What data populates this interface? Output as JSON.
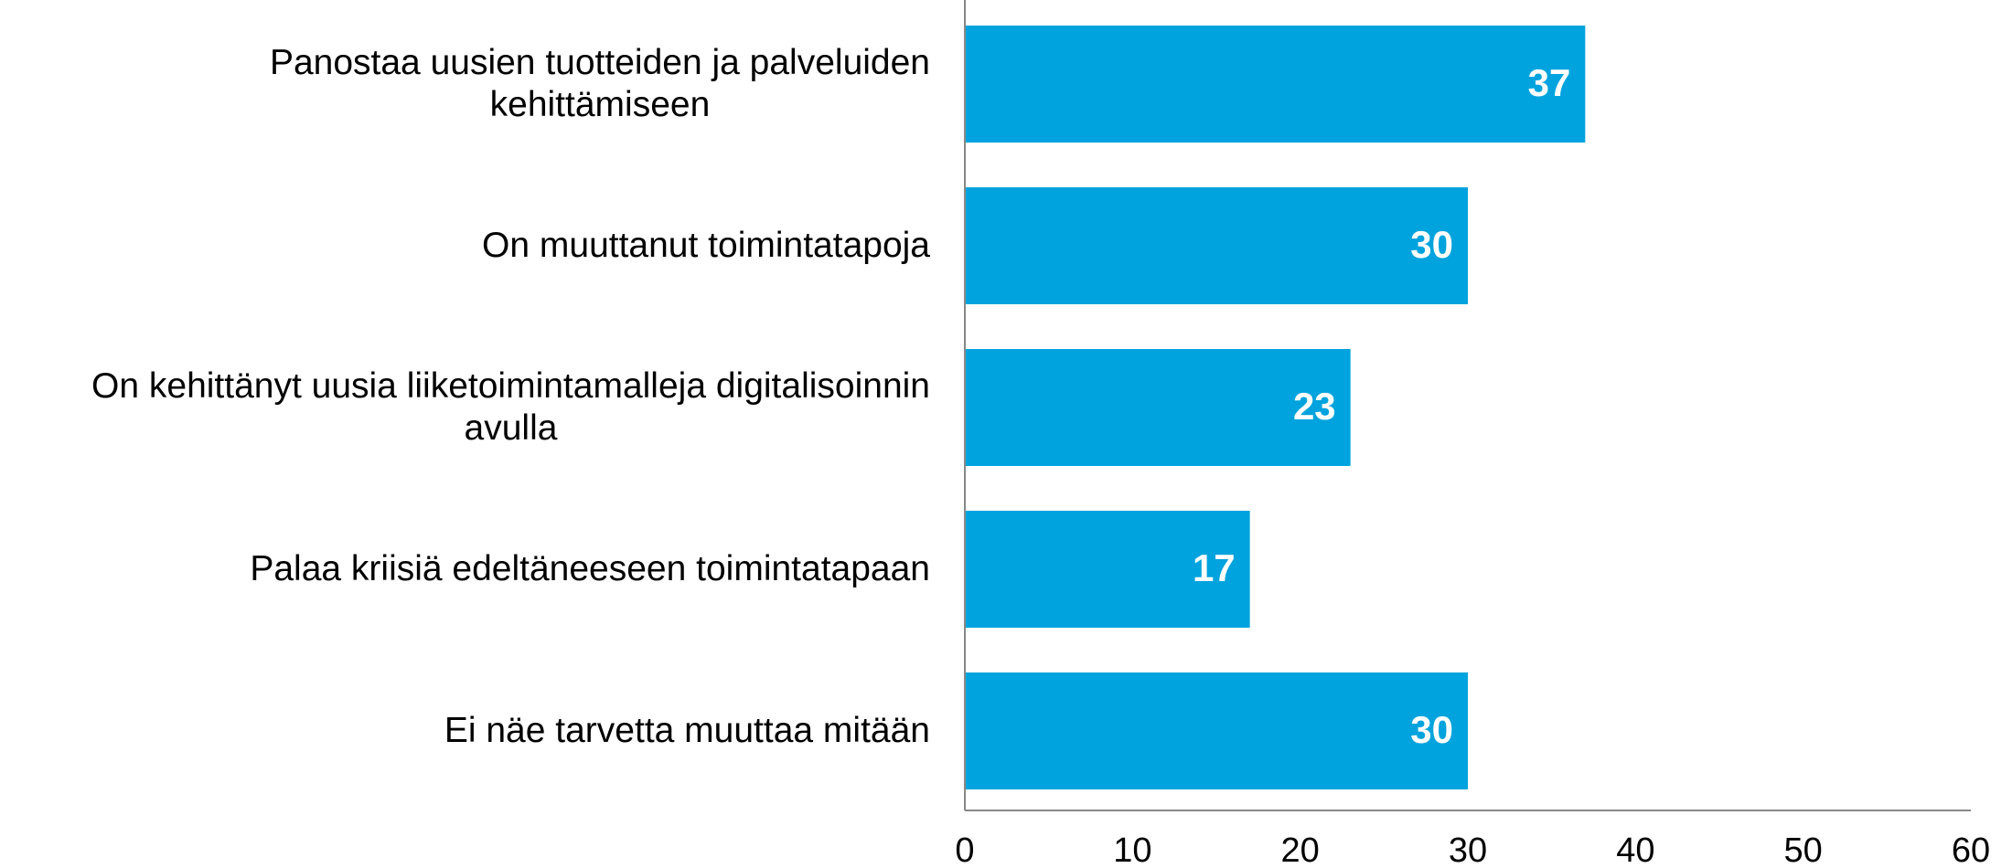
{
  "chart_data": {
    "type": "bar",
    "orientation": "horizontal",
    "categories": [
      "Panostaa uusien tuotteiden ja palveluiden\nkehittämiseen",
      "On muuttanut toimintatapoja",
      "On kehittänyt uusia liiketoimintamalleja digitalisoinnin\navulla",
      "Palaa kriisiä edeltäneeseen toimintatapaan",
      "Ei näe tarvetta muuttaa mitään"
    ],
    "values": [
      37,
      30,
      23,
      17,
      30
    ],
    "color": "#00a3dd",
    "xlim": [
      0,
      60
    ],
    "xticks": [
      0,
      10,
      20,
      30,
      40,
      50,
      60
    ],
    "grid": false
  }
}
